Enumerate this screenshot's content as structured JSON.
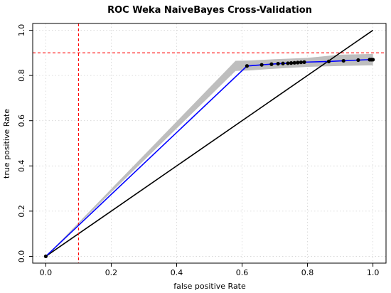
{
  "chart_data": {
    "type": "line",
    "title": "ROC Weka NaiveBayes Cross-Validation",
    "xlabel": "false positive Rate",
    "ylabel": "true positive Rate",
    "xlim": [
      -0.04,
      1.04
    ],
    "ylim": [
      -0.03,
      1.03
    ],
    "x_ticks": [
      0.0,
      0.2,
      0.4,
      0.6,
      0.8,
      1.0
    ],
    "x_tick_labels": [
      "0.0",
      "0.2",
      "0.4",
      "0.6",
      "0.8",
      "1.0"
    ],
    "y_ticks": [
      0.0,
      0.2,
      0.4,
      0.6,
      0.8,
      1.0
    ],
    "y_tick_labels": [
      "0.0",
      "0.2",
      "0.4",
      "0.6",
      "0.8",
      "1.0"
    ],
    "grid": true,
    "colors": {
      "roc_curve": "#0000ff",
      "confidence_band": "#bebebe",
      "diagonal": "#000000",
      "reference_lines": "#ff0000",
      "grid": "#d3d3d3",
      "points": "#000000"
    },
    "series": [
      {
        "x": [
          0.0,
          0.615,
          0.66,
          0.69,
          0.71,
          0.725,
          0.74,
          0.75,
          0.76,
          0.77,
          0.78,
          0.79,
          0.865,
          0.91,
          0.955,
          0.99,
          0.995,
          1.0
        ],
        "y": [
          0.0,
          0.842,
          0.847,
          0.85,
          0.852,
          0.853,
          0.854,
          0.855,
          0.856,
          0.857,
          0.858,
          0.859,
          0.862,
          0.865,
          0.868,
          0.87,
          0.87,
          0.87
        ]
      }
    ],
    "confidence_band": {
      "x": [
        0.0,
        0.58,
        0.62,
        0.7,
        0.8,
        0.9,
        1.0
      ],
      "upper": [
        0.0,
        0.865,
        0.866,
        0.872,
        0.878,
        0.892,
        0.895
      ],
      "lower": [
        0.0,
        0.82,
        0.822,
        0.83,
        0.838,
        0.842,
        0.845
      ]
    },
    "diagonal": {
      "x": [
        0.0,
        1.0
      ],
      "y": [
        0.0,
        1.0
      ]
    },
    "reference_lines": {
      "vertical_x": 0.1,
      "horizontal_y": 0.9
    }
  }
}
